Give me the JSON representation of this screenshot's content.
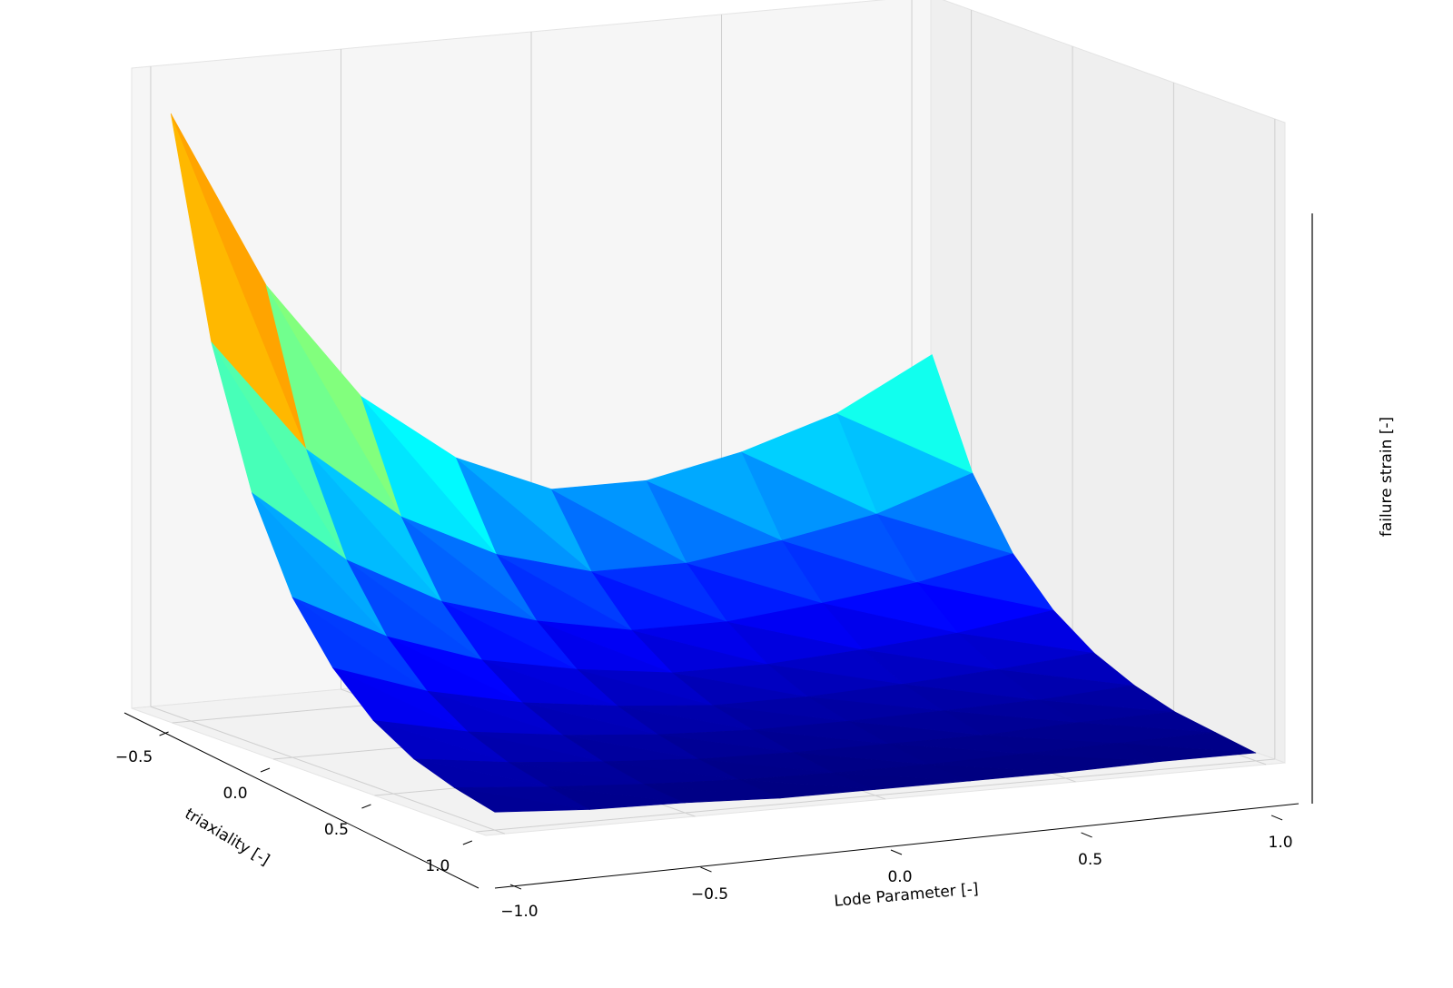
{
  "chart_data": {
    "type": "surface",
    "x_label": "triaxiality [-]",
    "y_label": "Lode Parameter [-]",
    "z_label": "failure strain [-]",
    "colormap": "jet",
    "x": [
      -0.6,
      -0.4,
      -0.2,
      0.0,
      0.2,
      0.4,
      0.6,
      0.8,
      1.0
    ],
    "y": [
      -1.0,
      -0.75,
      -0.5,
      -0.25,
      0.0,
      0.25,
      0.5,
      0.75,
      1.0
    ],
    "z": [
      [
        3.0,
        2.1,
        1.5,
        1.15,
        0.95,
        0.95,
        1.05,
        1.2,
        1.45
      ],
      [
        1.93,
        1.35,
        0.97,
        0.74,
        0.61,
        0.61,
        0.68,
        0.77,
        0.93
      ],
      [
        1.25,
        0.87,
        0.62,
        0.48,
        0.39,
        0.39,
        0.44,
        0.5,
        0.6
      ],
      [
        0.8,
        0.56,
        0.4,
        0.31,
        0.25,
        0.25,
        0.28,
        0.32,
        0.39
      ],
      [
        0.52,
        0.36,
        0.26,
        0.2,
        0.16,
        0.16,
        0.18,
        0.21,
        0.25
      ],
      [
        0.33,
        0.23,
        0.17,
        0.13,
        0.11,
        0.11,
        0.12,
        0.13,
        0.16
      ],
      [
        0.21,
        0.15,
        0.11,
        0.08,
        0.07,
        0.07,
        0.07,
        0.09,
        0.1
      ],
      [
        0.14,
        0.1,
        0.07,
        0.05,
        0.04,
        0.04,
        0.05,
        0.06,
        0.07
      ],
      [
        0.09,
        0.06,
        0.05,
        0.03,
        0.03,
        0.03,
        0.03,
        0.04,
        0.04
      ]
    ],
    "xlim": [
      -0.7,
      1.05
    ],
    "ylim": [
      -1.05,
      1.05
    ],
    "zlim": [
      0,
      3.2
    ],
    "xticks": [
      {
        "value": -0.5,
        "label": "−0.5"
      },
      {
        "value": 0.0,
        "label": "0.0"
      },
      {
        "value": 0.5,
        "label": "0.5"
      },
      {
        "value": 1.0,
        "label": "1.0"
      }
    ],
    "yticks": [
      {
        "value": -1.0,
        "label": "−1.0"
      },
      {
        "value": -0.5,
        "label": "−0.5"
      },
      {
        "value": 0.0,
        "label": "0.0"
      },
      {
        "value": 0.5,
        "label": "0.5"
      },
      {
        "value": 1.0,
        "label": "1.0"
      }
    ],
    "grid": true
  }
}
